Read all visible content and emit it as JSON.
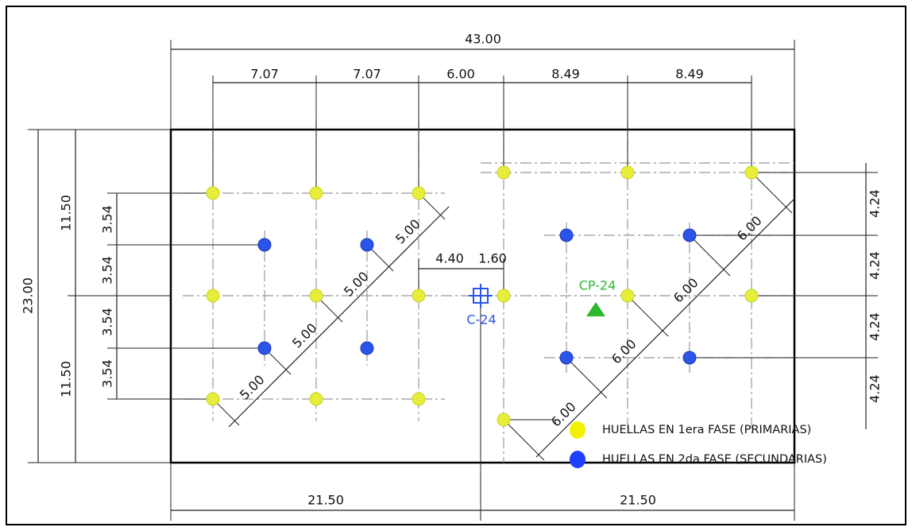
{
  "dimensions": {
    "overall_width": "43.00",
    "top": [
      "7.07",
      "7.07",
      "6.00",
      "8.49",
      "8.49"
    ],
    "overall_height": "23.00",
    "left_half": [
      "11.50",
      "11.50"
    ],
    "left": [
      "3.54",
      "3.54",
      "3.54",
      "3.54"
    ],
    "right": [
      "4.24",
      "4.24",
      "4.24",
      "4.24"
    ],
    "center": [
      "4.40",
      "1.60"
    ],
    "diagonal_left": [
      "5.00",
      "5.00",
      "5.00",
      "5.00"
    ],
    "diagonal_right": [
      "6.00",
      "6.00",
      "6.00",
      "6.00"
    ],
    "bottom": [
      "21.50",
      "21.50"
    ]
  },
  "labels": {
    "control_point": "C-24",
    "survey_point": "CP-24"
  },
  "legend": [
    {
      "label": "HUELLAS EN 1era FASE (PRIMARIAS)"
    },
    {
      "label": "HUELLAS EN 2da FASE (SECUNDARIAS)"
    }
  ]
}
